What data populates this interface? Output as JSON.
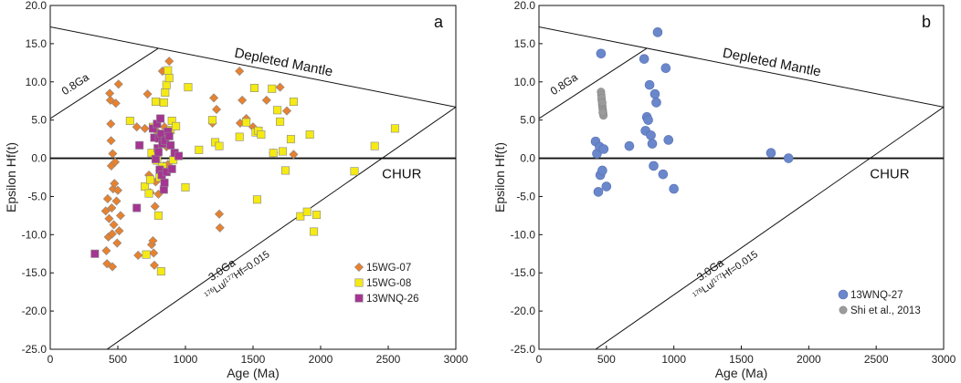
{
  "chart_data": [
    {
      "type": "scatter",
      "panel_label": "a",
      "xlabel": "Age (Ma)",
      "ylabel": "Epsilon Hf(t)",
      "xlim": [
        0,
        3000
      ],
      "ylim": [
        -25,
        20
      ],
      "x_ticks": [
        0,
        500,
        1000,
        1500,
        2000,
        2500,
        3000
      ],
      "y_ticks": [
        -25,
        -20,
        -15,
        -10,
        -5,
        0,
        5,
        10,
        15,
        20
      ],
      "x_tick_labels": [
        "0",
        "500",
        "1000",
        "1500",
        "2000",
        "2500",
        "3000"
      ],
      "y_tick_labels": [
        "-25.0",
        "-20.0",
        "-15.0",
        "-10.0",
        "-5.0",
        "0.0",
        "5.0",
        "10.0",
        "15.0",
        "20.0"
      ],
      "reference_lines": [
        {
          "name": "Depleted Mantle",
          "x": [
            0,
            3000
          ],
          "y": [
            17.2,
            6.7
          ]
        },
        {
          "name": "CHUR",
          "x": [
            0,
            3000
          ],
          "y": [
            0,
            0
          ]
        },
        {
          "name": "0.8Ga",
          "x": [
            0,
            800
          ],
          "y": [
            5.2,
            14.4
          ]
        },
        {
          "name": "3.0Ga",
          "x": [
            420,
            3000
          ],
          "y": [
            -25,
            6.7
          ]
        }
      ],
      "annotations": {
        "dm": "Depleted Mantle",
        "chur": "CHUR",
        "ga08": "0.8Ga",
        "ga30": "3.0Ga",
        "lu_pre": "176",
        "lu_mid": "Lu/",
        "lu_sup2": "177",
        "lu_post": "Hf=0.015"
      },
      "series": [
        {
          "name": "15WG-07",
          "marker": "diamond",
          "color": "#e8812e",
          "points": [
            [
              410,
              -6.9
            ],
            [
              415,
              -12.1
            ],
            [
              420,
              -13.8
            ],
            [
              425,
              -5.3
            ],
            [
              430,
              -10.3
            ],
            [
              435,
              -7.9
            ],
            [
              440,
              8.5
            ],
            [
              445,
              7.6
            ],
            [
              448,
              4.5
            ],
            [
              450,
              2.3
            ],
            [
              452,
              -1.0
            ],
            [
              455,
              -6.5
            ],
            [
              458,
              -9.9
            ],
            [
              460,
              -14.2
            ],
            [
              462,
              0.6
            ],
            [
              465,
              -4.0
            ],
            [
              470,
              -8.7
            ],
            [
              475,
              -3.3
            ],
            [
              480,
              -0.5
            ],
            [
              485,
              7.2
            ],
            [
              490,
              -5.6
            ],
            [
              495,
              -11.1
            ],
            [
              500,
              -4.2
            ],
            [
              505,
              9.7
            ],
            [
              510,
              -9.5
            ],
            [
              520,
              -7.5
            ],
            [
              640,
              4.1
            ],
            [
              650,
              -12.7
            ],
            [
              700,
              3.9
            ],
            [
              720,
              8.4
            ],
            [
              730,
              -2.2
            ],
            [
              740,
              -4.5
            ],
            [
              750,
              -11.3
            ],
            [
              760,
              -10.8
            ],
            [
              765,
              -12.4
            ],
            [
              770,
              -14.0
            ],
            [
              775,
              -6.3
            ],
            [
              780,
              -3.1
            ],
            [
              790,
              3.5
            ],
            [
              800,
              -4.7
            ],
            [
              810,
              -1.6
            ],
            [
              830,
              11.4
            ],
            [
              840,
              -1.0
            ],
            [
              845,
              4.1
            ],
            [
              860,
              1.5
            ],
            [
              870,
              -0.8
            ],
            [
              880,
              12.7
            ],
            [
              1200,
              4.6
            ],
            [
              1210,
              7.9
            ],
            [
              1230,
              6.4
            ],
            [
              1250,
              -7.3
            ],
            [
              1255,
              -9.1
            ],
            [
              1400,
              11.4
            ],
            [
              1405,
              4.6
            ],
            [
              1420,
              7.6
            ],
            [
              1450,
              5.2
            ],
            [
              1500,
              4.1
            ],
            [
              1600,
              7.6
            ],
            [
              1650,
              0.7
            ],
            [
              1700,
              9.3
            ],
            [
              1750,
              6.2
            ],
            [
              1800,
              0.5
            ]
          ]
        },
        {
          "name": "15WG-08",
          "marker": "square",
          "color": "#f5ea14",
          "points": [
            [
              590,
              4.9
            ],
            [
              700,
              -3.7
            ],
            [
              710,
              -12.6
            ],
            [
              730,
              -4.6
            ],
            [
              740,
              -2.8
            ],
            [
              750,
              0.7
            ],
            [
              760,
              4.1
            ],
            [
              780,
              7.4
            ],
            [
              790,
              -0.3
            ],
            [
              800,
              -7.5
            ],
            [
              810,
              -2.5
            ],
            [
              820,
              -14.8
            ],
            [
              830,
              -1.1
            ],
            [
              840,
              7.3
            ],
            [
              850,
              8.6
            ],
            [
              860,
              9.6
            ],
            [
              870,
              11.5
            ],
            [
              880,
              10.5
            ],
            [
              890,
              3.7
            ],
            [
              900,
              4.9
            ],
            [
              910,
              -0.2
            ],
            [
              930,
              4.2
            ],
            [
              1000,
              -3.8
            ],
            [
              1020,
              9.3
            ],
            [
              1100,
              1.1
            ],
            [
              1200,
              5.0
            ],
            [
              1220,
              2.1
            ],
            [
              1250,
              1.6
            ],
            [
              1400,
              2.8
            ],
            [
              1450,
              4.7
            ],
            [
              1510,
              9.2
            ],
            [
              1520,
              3.4
            ],
            [
              1530,
              -5.4
            ],
            [
              1540,
              3.6
            ],
            [
              1560,
              3.1
            ],
            [
              1640,
              9.1
            ],
            [
              1650,
              0.7
            ],
            [
              1680,
              6.3
            ],
            [
              1700,
              4.8
            ],
            [
              1720,
              0.9
            ],
            [
              1740,
              -1.6
            ],
            [
              1780,
              2.5
            ],
            [
              1800,
              7.4
            ],
            [
              1850,
              -7.6
            ],
            [
              1900,
              -7.0
            ],
            [
              1920,
              3.1
            ],
            [
              1950,
              -9.6
            ],
            [
              1970,
              -7.4
            ],
            [
              2250,
              -1.7
            ],
            [
              2400,
              1.6
            ],
            [
              2550,
              3.9
            ]
          ]
        },
        {
          "name": "13WNQ-26",
          "marker": "square",
          "color": "#a53592",
          "points": [
            [
              330,
              -12.5
            ],
            [
              640,
              -6.5
            ],
            [
              660,
              1.7
            ],
            [
              760,
              3.9
            ],
            [
              770,
              2.7
            ],
            [
              780,
              -0.1
            ],
            [
              790,
              4.5
            ],
            [
              795,
              1.3
            ],
            [
              800,
              0.8
            ],
            [
              805,
              2.6
            ],
            [
              810,
              -1.5
            ],
            [
              815,
              5.2
            ],
            [
              820,
              3.2
            ],
            [
              825,
              -2.2
            ],
            [
              830,
              1.9
            ],
            [
              840,
              -4.1
            ],
            [
              845,
              -3.2
            ],
            [
              850,
              2.3
            ],
            [
              860,
              -1.8
            ],
            [
              870,
              3.5
            ],
            [
              880,
              2.9
            ],
            [
              890,
              1.7
            ],
            [
              900,
              -1.4
            ],
            [
              920,
              0.7
            ],
            [
              950,
              0.3
            ]
          ]
        }
      ],
      "legend": [
        "15WG-07",
        "15WG-08",
        "13WNQ-26"
      ]
    },
    {
      "type": "scatter",
      "panel_label": "b",
      "xlabel": "Age (Ma)",
      "ylabel": "Epsilon Hf(t)",
      "xlim": [
        0,
        3000
      ],
      "ylim": [
        -25,
        20
      ],
      "x_ticks": [
        0,
        500,
        1000,
        1500,
        2000,
        2500,
        3000
      ],
      "y_ticks": [
        -25,
        -20,
        -15,
        -10,
        -5,
        0,
        5,
        10,
        15,
        20
      ],
      "x_tick_labels": [
        "0",
        "500",
        "1000",
        "1500",
        "2000",
        "2500",
        "3000"
      ],
      "y_tick_labels": [
        "-25.0",
        "-20.0",
        "-15.0",
        "-10.0",
        "-5.0",
        "0.0",
        "5.0",
        "10.0",
        "15.0",
        "20.0"
      ],
      "reference_lines": [
        {
          "name": "Depleted Mantle",
          "x": [
            0,
            3000
          ],
          "y": [
            17.2,
            6.7
          ]
        },
        {
          "name": "CHUR",
          "x": [
            0,
            3000
          ],
          "y": [
            0,
            0
          ]
        },
        {
          "name": "0.8Ga",
          "x": [
            0,
            800
          ],
          "y": [
            5.2,
            14.4
          ]
        },
        {
          "name": "3.0Ga",
          "x": [
            420,
            3000
          ],
          "y": [
            -25,
            6.7
          ]
        }
      ],
      "annotations": {
        "dm": "Depleted Mantle",
        "chur": "CHUR",
        "ga08": "0.8Ga",
        "ga30": "3.0Ga",
        "lu_pre": "176",
        "lu_mid": "Lu/",
        "lu_sup2": "177",
        "lu_post": "Hf=0.015"
      },
      "series": [
        {
          "name": "13WNQ-27",
          "marker": "circle",
          "color": "#6b87cc",
          "points": [
            [
              420,
              2.2
            ],
            [
              430,
              0.6
            ],
            [
              440,
              -4.4
            ],
            [
              450,
              1.5
            ],
            [
              455,
              -2.2
            ],
            [
              460,
              13.7
            ],
            [
              470,
              -1.6
            ],
            [
              480,
              1.2
            ],
            [
              500,
              -3.7
            ],
            [
              670,
              1.6
            ],
            [
              780,
              13.0
            ],
            [
              790,
              3.6
            ],
            [
              800,
              5.4
            ],
            [
              810,
              5.0
            ],
            [
              820,
              9.6
            ],
            [
              830,
              3.0
            ],
            [
              840,
              1.9
            ],
            [
              850,
              -1.0
            ],
            [
              860,
              8.4
            ],
            [
              870,
              7.3
            ],
            [
              880,
              16.5
            ],
            [
              920,
              -2.1
            ],
            [
              940,
              11.8
            ],
            [
              960,
              2.4
            ],
            [
              1000,
              -4.0
            ],
            [
              1720,
              0.7
            ],
            [
              1850,
              0.0
            ]
          ]
        },
        {
          "name": "Shi et al., 2013",
          "marker": "circle",
          "color": "#9b9b9b",
          "points": [
            [
              460,
              8.7
            ],
            [
              462,
              8.3
            ],
            [
              464,
              7.8
            ],
            [
              466,
              7.5
            ],
            [
              468,
              7.1
            ],
            [
              470,
              6.8
            ],
            [
              472,
              6.5
            ],
            [
              474,
              6.2
            ],
            [
              476,
              5.9
            ],
            [
              478,
              5.6
            ],
            [
              465,
              7.9
            ],
            [
              470,
              7.3
            ],
            [
              472,
              6.0
            ]
          ]
        }
      ],
      "legend": [
        "13WNQ-27",
        "Shi et al., 2013"
      ]
    }
  ]
}
